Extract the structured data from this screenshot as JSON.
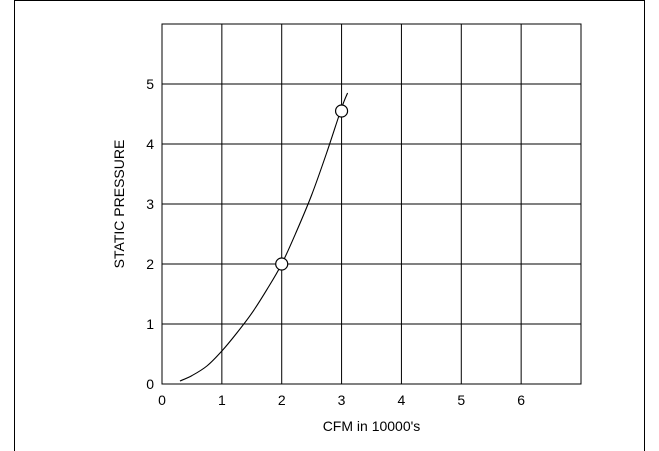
{
  "chart_data": {
    "type": "line",
    "title": "",
    "xlabel": "CFM  in  10000's",
    "ylabel": "STATIC  PRESSURE",
    "xlim": [
      0,
      7
    ],
    "ylim": [
      0,
      6
    ],
    "x_ticks": [
      "0",
      "1",
      "2",
      "3",
      "4",
      "5",
      "6"
    ],
    "y_ticks": [
      "0",
      "1",
      "2",
      "3",
      "4",
      "5"
    ],
    "grid": true,
    "legend": "none",
    "series": [
      {
        "curve": {
          "x": [
            0.3,
            0.5,
            0.75,
            1.0,
            1.25,
            1.5,
            1.75,
            2.0,
            2.25,
            2.5,
            2.75,
            3.0,
            3.1
          ],
          "y": [
            0.05,
            0.14,
            0.3,
            0.55,
            0.85,
            1.18,
            1.57,
            2.0,
            2.55,
            3.15,
            3.85,
            4.6,
            4.85
          ]
        },
        "markers": [
          {
            "x": 2.0,
            "y": 2.0
          },
          {
            "x": 3.0,
            "y": 4.55
          }
        ]
      }
    ]
  }
}
